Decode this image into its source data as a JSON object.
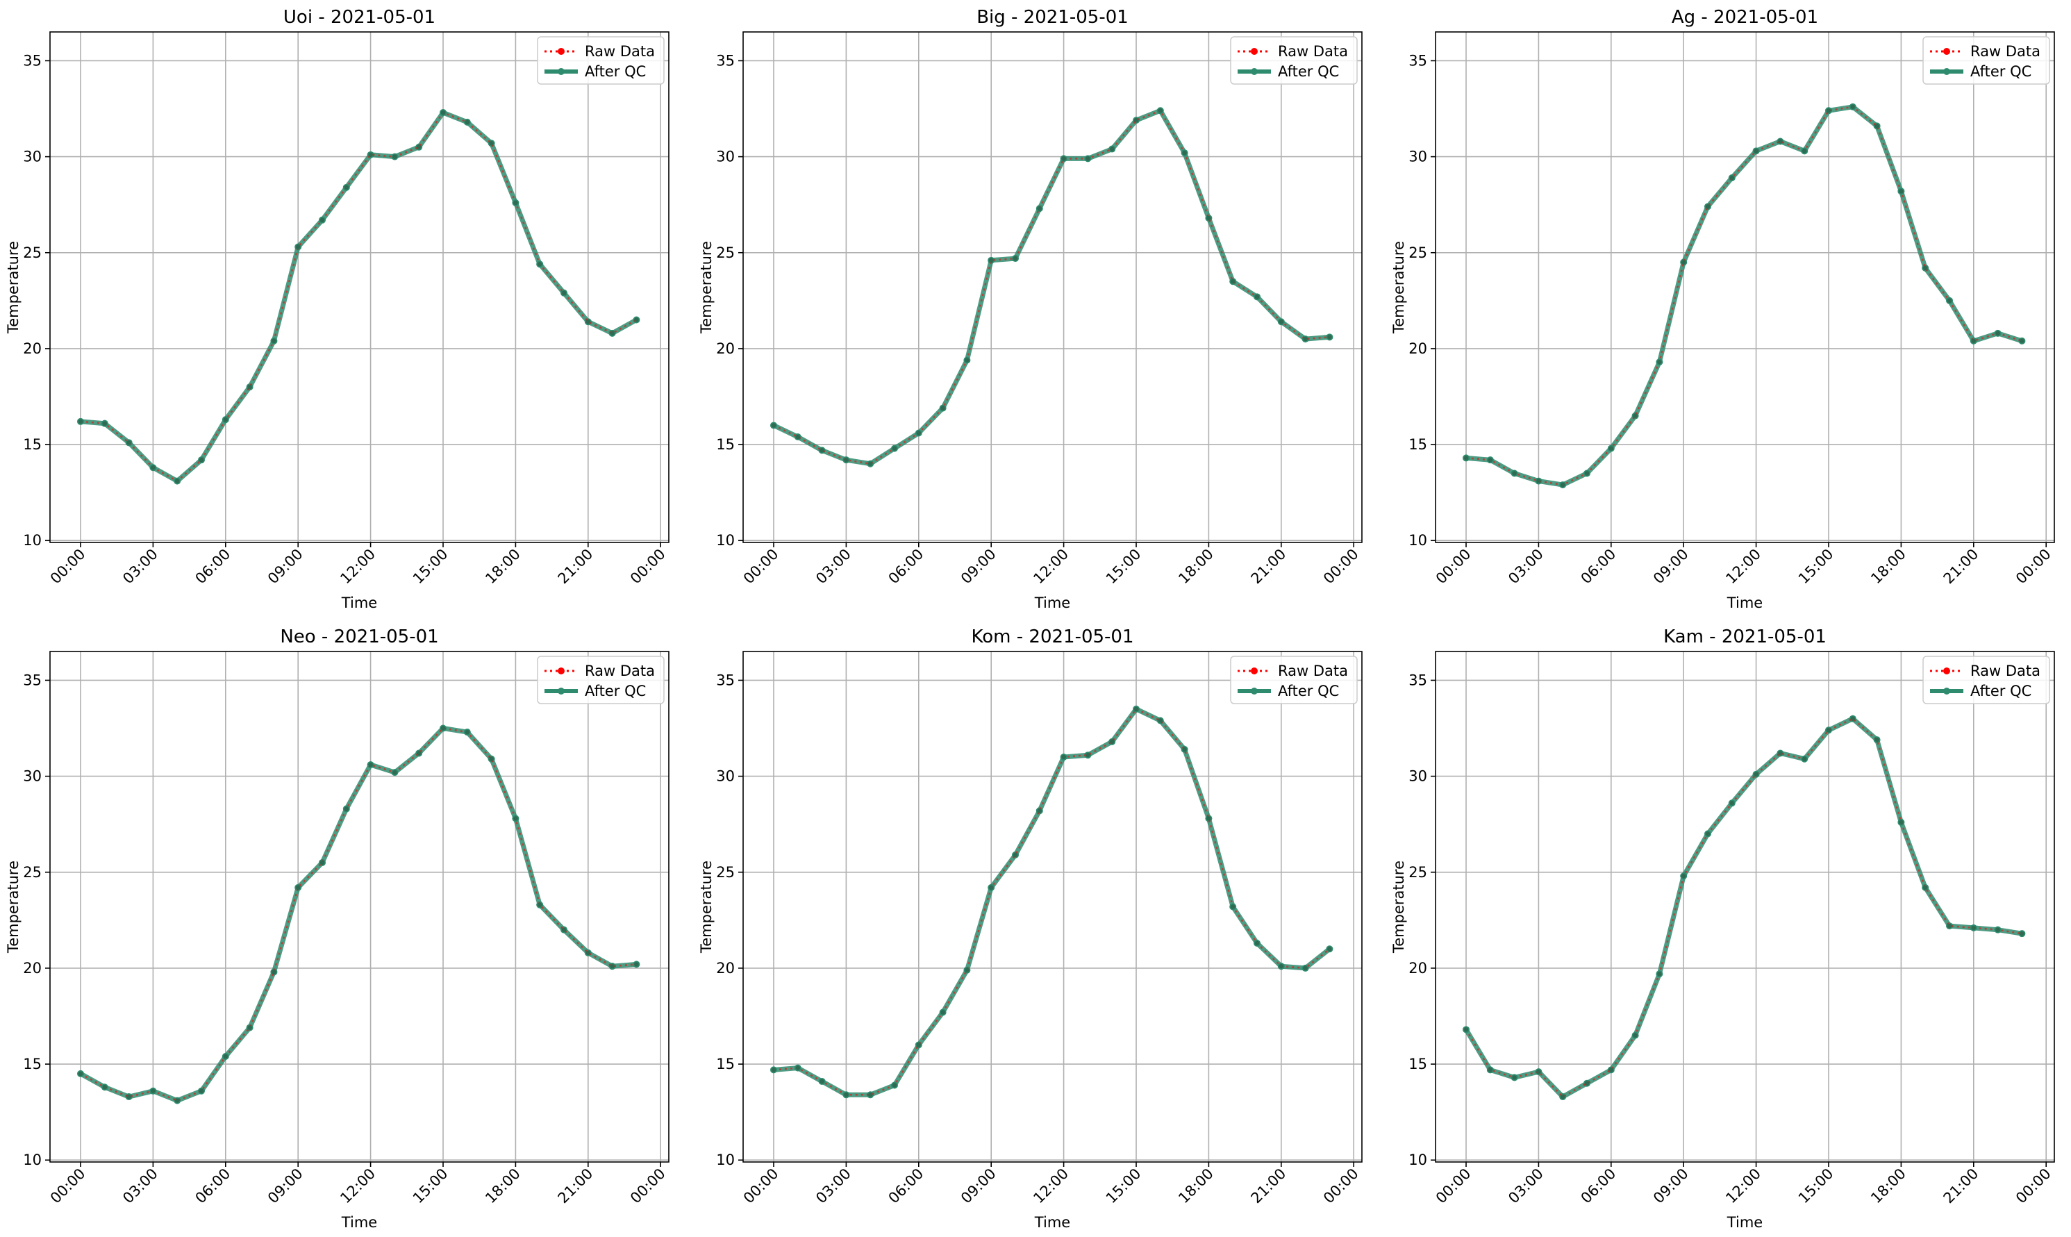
{
  "colors": {
    "raw": "#ff0000",
    "qc": "#2e8b6e",
    "grid": "#b0b0b0",
    "legend_border": "#cccccc"
  },
  "legend": {
    "raw": "Raw Data",
    "qc": "After QC",
    "placement": "upper right"
  },
  "chart_data": [
    {
      "type": "line",
      "title": "Uoi - 2021-05-01",
      "xlabel": "Time",
      "ylabel": "Temperature",
      "x": [
        "00:00",
        "01:00",
        "02:00",
        "03:00",
        "04:00",
        "05:00",
        "06:00",
        "07:00",
        "08:00",
        "09:00",
        "10:00",
        "11:00",
        "12:00",
        "13:00",
        "14:00",
        "15:00",
        "16:00",
        "17:00",
        "18:00",
        "19:00",
        "20:00",
        "21:00",
        "22:00",
        "23:00"
      ],
      "xticks": [
        "00:00",
        "03:00",
        "06:00",
        "09:00",
        "12:00",
        "15:00",
        "18:00",
        "21:00",
        "00:00"
      ],
      "yticks": [
        10,
        15,
        20,
        25,
        30,
        35
      ],
      "ylim": [
        9.9,
        36.5
      ],
      "grid": true,
      "series": [
        {
          "name": "Raw Data",
          "values": [
            16.2,
            16.1,
            15.1,
            13.8,
            13.1,
            14.2,
            16.3,
            18.0,
            20.4,
            25.3,
            26.7,
            28.4,
            30.1,
            30.0,
            30.5,
            32.3,
            31.8,
            30.7,
            27.6,
            24.4,
            22.9,
            21.4,
            20.8,
            21.5
          ]
        },
        {
          "name": "After QC",
          "values": [
            16.2,
            16.1,
            15.1,
            13.8,
            13.1,
            14.2,
            16.3,
            18.0,
            20.4,
            25.3,
            26.7,
            28.4,
            30.1,
            30.0,
            30.5,
            32.3,
            31.8,
            30.7,
            27.6,
            24.4,
            22.9,
            21.4,
            20.8,
            21.5
          ]
        }
      ]
    },
    {
      "type": "line",
      "title": "Big - 2021-05-01",
      "xlabel": "Time",
      "ylabel": "Temperature",
      "x": [
        "00:00",
        "01:00",
        "02:00",
        "03:00",
        "04:00",
        "05:00",
        "06:00",
        "07:00",
        "08:00",
        "09:00",
        "10:00",
        "11:00",
        "12:00",
        "13:00",
        "14:00",
        "15:00",
        "16:00",
        "17:00",
        "18:00",
        "19:00",
        "20:00",
        "21:00",
        "22:00",
        "23:00"
      ],
      "xticks": [
        "00:00",
        "03:00",
        "06:00",
        "09:00",
        "12:00",
        "15:00",
        "18:00",
        "21:00",
        "00:00"
      ],
      "yticks": [
        10,
        15,
        20,
        25,
        30,
        35
      ],
      "ylim": [
        9.9,
        36.5
      ],
      "grid": true,
      "series": [
        {
          "name": "Raw Data",
          "values": [
            16.0,
            15.4,
            14.7,
            14.2,
            14.0,
            14.8,
            15.6,
            16.9,
            19.4,
            24.6,
            24.7,
            27.3,
            29.9,
            29.9,
            30.4,
            31.9,
            32.4,
            30.2,
            26.8,
            23.5,
            22.7,
            21.4,
            20.5,
            20.6
          ]
        },
        {
          "name": "After QC",
          "values": [
            16.0,
            15.4,
            14.7,
            14.2,
            14.0,
            14.8,
            15.6,
            16.9,
            19.4,
            24.6,
            24.7,
            27.3,
            29.9,
            29.9,
            30.4,
            31.9,
            32.4,
            30.2,
            26.8,
            23.5,
            22.7,
            21.4,
            20.5,
            20.6
          ]
        }
      ]
    },
    {
      "type": "line",
      "title": "Ag - 2021-05-01",
      "xlabel": "Time",
      "ylabel": "Temperature",
      "x": [
        "00:00",
        "01:00",
        "02:00",
        "03:00",
        "04:00",
        "05:00",
        "06:00",
        "07:00",
        "08:00",
        "09:00",
        "10:00",
        "11:00",
        "12:00",
        "13:00",
        "14:00",
        "15:00",
        "16:00",
        "17:00",
        "18:00",
        "19:00",
        "20:00",
        "21:00",
        "22:00",
        "23:00"
      ],
      "xticks": [
        "00:00",
        "03:00",
        "06:00",
        "09:00",
        "12:00",
        "15:00",
        "18:00",
        "21:00",
        "00:00"
      ],
      "yticks": [
        10,
        15,
        20,
        25,
        30,
        35
      ],
      "ylim": [
        9.9,
        36.5
      ],
      "grid": true,
      "series": [
        {
          "name": "Raw Data",
          "values": [
            14.3,
            14.2,
            13.5,
            13.1,
            12.9,
            13.5,
            14.8,
            16.5,
            19.3,
            24.5,
            27.4,
            28.9,
            30.3,
            30.8,
            30.3,
            32.4,
            32.6,
            31.6,
            28.2,
            24.2,
            22.5,
            20.4,
            20.8,
            20.4
          ]
        },
        {
          "name": "After QC",
          "values": [
            14.3,
            14.2,
            13.5,
            13.1,
            12.9,
            13.5,
            14.8,
            16.5,
            19.3,
            24.5,
            27.4,
            28.9,
            30.3,
            30.8,
            30.3,
            32.4,
            32.6,
            31.6,
            28.2,
            24.2,
            22.5,
            20.4,
            20.8,
            20.4
          ]
        }
      ]
    },
    {
      "type": "line",
      "title": "Neo - 2021-05-01",
      "xlabel": "Time",
      "ylabel": "Temperature",
      "x": [
        "00:00",
        "01:00",
        "02:00",
        "03:00",
        "04:00",
        "05:00",
        "06:00",
        "07:00",
        "08:00",
        "09:00",
        "10:00",
        "11:00",
        "12:00",
        "13:00",
        "14:00",
        "15:00",
        "16:00",
        "17:00",
        "18:00",
        "19:00",
        "20:00",
        "21:00",
        "22:00",
        "23:00"
      ],
      "xticks": [
        "00:00",
        "03:00",
        "06:00",
        "09:00",
        "12:00",
        "15:00",
        "18:00",
        "21:00",
        "00:00"
      ],
      "yticks": [
        10,
        15,
        20,
        25,
        30,
        35
      ],
      "ylim": [
        9.9,
        36.5
      ],
      "grid": true,
      "series": [
        {
          "name": "Raw Data",
          "values": [
            14.5,
            13.8,
            13.3,
            13.6,
            13.1,
            13.6,
            15.4,
            16.9,
            19.8,
            24.2,
            25.5,
            28.3,
            30.6,
            30.2,
            31.2,
            32.5,
            32.3,
            30.9,
            27.8,
            23.3,
            22.0,
            20.8,
            20.1,
            20.2
          ]
        },
        {
          "name": "After QC",
          "values": [
            14.5,
            13.8,
            13.3,
            13.6,
            13.1,
            13.6,
            15.4,
            16.9,
            19.8,
            24.2,
            25.5,
            28.3,
            30.6,
            30.2,
            31.2,
            32.5,
            32.3,
            30.9,
            27.8,
            23.3,
            22.0,
            20.8,
            20.1,
            20.2
          ]
        }
      ]
    },
    {
      "type": "line",
      "title": "Kom - 2021-05-01",
      "xlabel": "Time",
      "ylabel": "Temperature",
      "x": [
        "00:00",
        "01:00",
        "02:00",
        "03:00",
        "04:00",
        "05:00",
        "06:00",
        "07:00",
        "08:00",
        "09:00",
        "10:00",
        "11:00",
        "12:00",
        "13:00",
        "14:00",
        "15:00",
        "16:00",
        "17:00",
        "18:00",
        "19:00",
        "20:00",
        "21:00",
        "22:00",
        "23:00"
      ],
      "xticks": [
        "00:00",
        "03:00",
        "06:00",
        "09:00",
        "12:00",
        "15:00",
        "18:00",
        "21:00",
        "00:00"
      ],
      "yticks": [
        10,
        15,
        20,
        25,
        30,
        35
      ],
      "ylim": [
        9.9,
        36.5
      ],
      "grid": true,
      "series": [
        {
          "name": "Raw Data",
          "values": [
            14.7,
            14.8,
            14.1,
            13.4,
            13.4,
            13.9,
            16.0,
            17.7,
            19.9,
            24.2,
            25.9,
            28.2,
            31.0,
            31.1,
            31.8,
            33.5,
            32.9,
            31.4,
            27.8,
            23.2,
            21.3,
            20.1,
            20.0,
            21.0
          ]
        },
        {
          "name": "After QC",
          "values": [
            14.7,
            14.8,
            14.1,
            13.4,
            13.4,
            13.9,
            16.0,
            17.7,
            19.9,
            24.2,
            25.9,
            28.2,
            31.0,
            31.1,
            31.8,
            33.5,
            32.9,
            31.4,
            27.8,
            23.2,
            21.3,
            20.1,
            20.0,
            21.0
          ]
        }
      ]
    },
    {
      "type": "line",
      "title": "Kam - 2021-05-01",
      "xlabel": "Time",
      "ylabel": "Temperature",
      "x": [
        "00:00",
        "01:00",
        "02:00",
        "03:00",
        "04:00",
        "05:00",
        "06:00",
        "07:00",
        "08:00",
        "09:00",
        "10:00",
        "11:00",
        "12:00",
        "13:00",
        "14:00",
        "15:00",
        "16:00",
        "17:00",
        "18:00",
        "19:00",
        "20:00",
        "21:00",
        "22:00",
        "23:00"
      ],
      "xticks": [
        "00:00",
        "03:00",
        "06:00",
        "09:00",
        "12:00",
        "15:00",
        "18:00",
        "21:00",
        "00:00"
      ],
      "yticks": [
        10,
        15,
        20,
        25,
        30,
        35
      ],
      "ylim": [
        9.9,
        36.5
      ],
      "grid": true,
      "series": [
        {
          "name": "Raw Data",
          "values": [
            16.8,
            14.7,
            14.3,
            14.6,
            13.3,
            14.0,
            14.7,
            16.5,
            19.7,
            24.8,
            27.0,
            28.6,
            30.1,
            31.2,
            30.9,
            32.4,
            33.0,
            31.9,
            27.6,
            24.2,
            22.2,
            22.1,
            22.0,
            21.8
          ]
        },
        {
          "name": "After QC",
          "values": [
            16.8,
            14.7,
            14.3,
            14.6,
            13.3,
            14.0,
            14.7,
            16.5,
            19.7,
            24.8,
            27.0,
            28.6,
            30.1,
            31.2,
            30.9,
            32.4,
            33.0,
            31.9,
            27.6,
            24.2,
            22.2,
            22.1,
            22.0,
            21.8
          ]
        }
      ]
    }
  ]
}
